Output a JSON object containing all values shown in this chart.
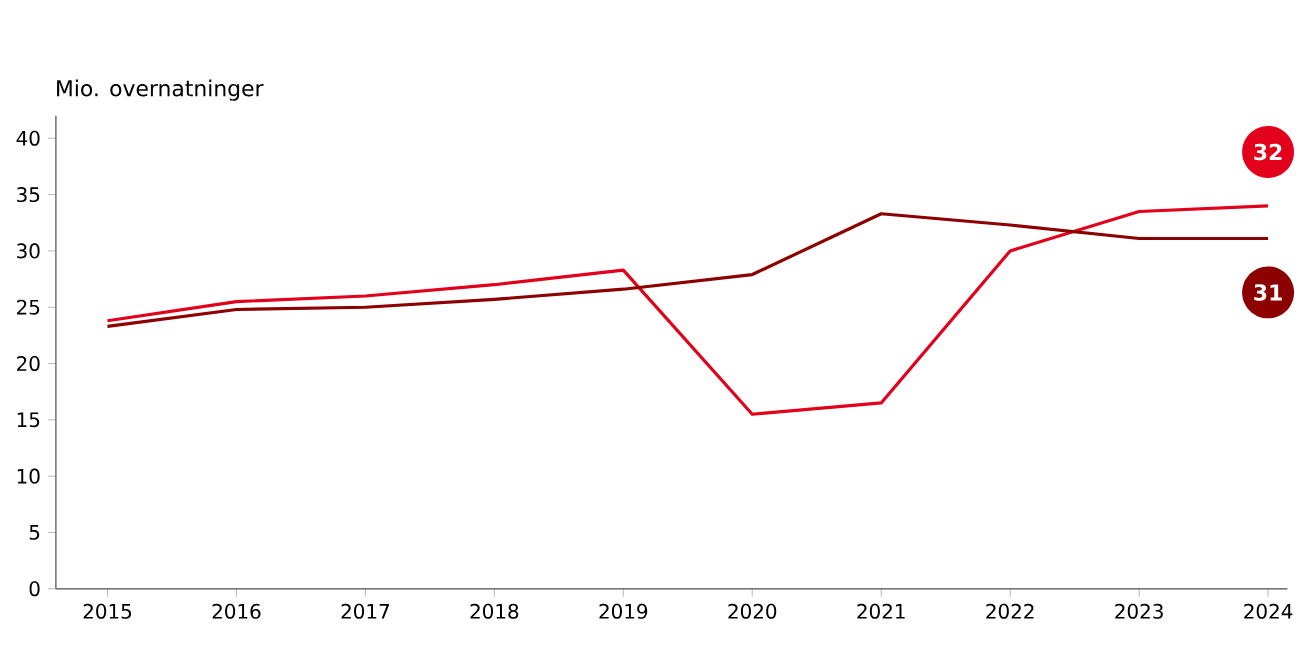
{
  "chart_data": {
    "type": "line",
    "ylabel": "Mio. overnatninger",
    "x": [
      2015,
      2016,
      2017,
      2018,
      2019,
      2020,
      2021,
      2022,
      2023,
      2024
    ],
    "series": [
      {
        "color": "#e2001a",
        "values": [
          23.8,
          25.5,
          26.0,
          27.0,
          28.3,
          15.5,
          16.5,
          30.0,
          33.5,
          34.0
        ]
      },
      {
        "color": "#8c0000",
        "values": [
          23.3,
          24.8,
          25.0,
          25.7,
          26.6,
          27.9,
          33.3,
          32.3,
          31.1,
          31.1
        ]
      }
    ],
    "annotations": [
      "32",
      "31"
    ],
    "xlim": [
      2014.6,
      2024.15
    ],
    "ylim": [
      0,
      42
    ],
    "xticks": [
      2015,
      2016,
      2017,
      2018,
      2019,
      2020,
      2021,
      2022,
      2023,
      2024
    ],
    "yticks": [
      0,
      5,
      10,
      15,
      20,
      25,
      30,
      35,
      40
    ],
    "grid": false,
    "marker": "none",
    "line_style": "solid"
  }
}
